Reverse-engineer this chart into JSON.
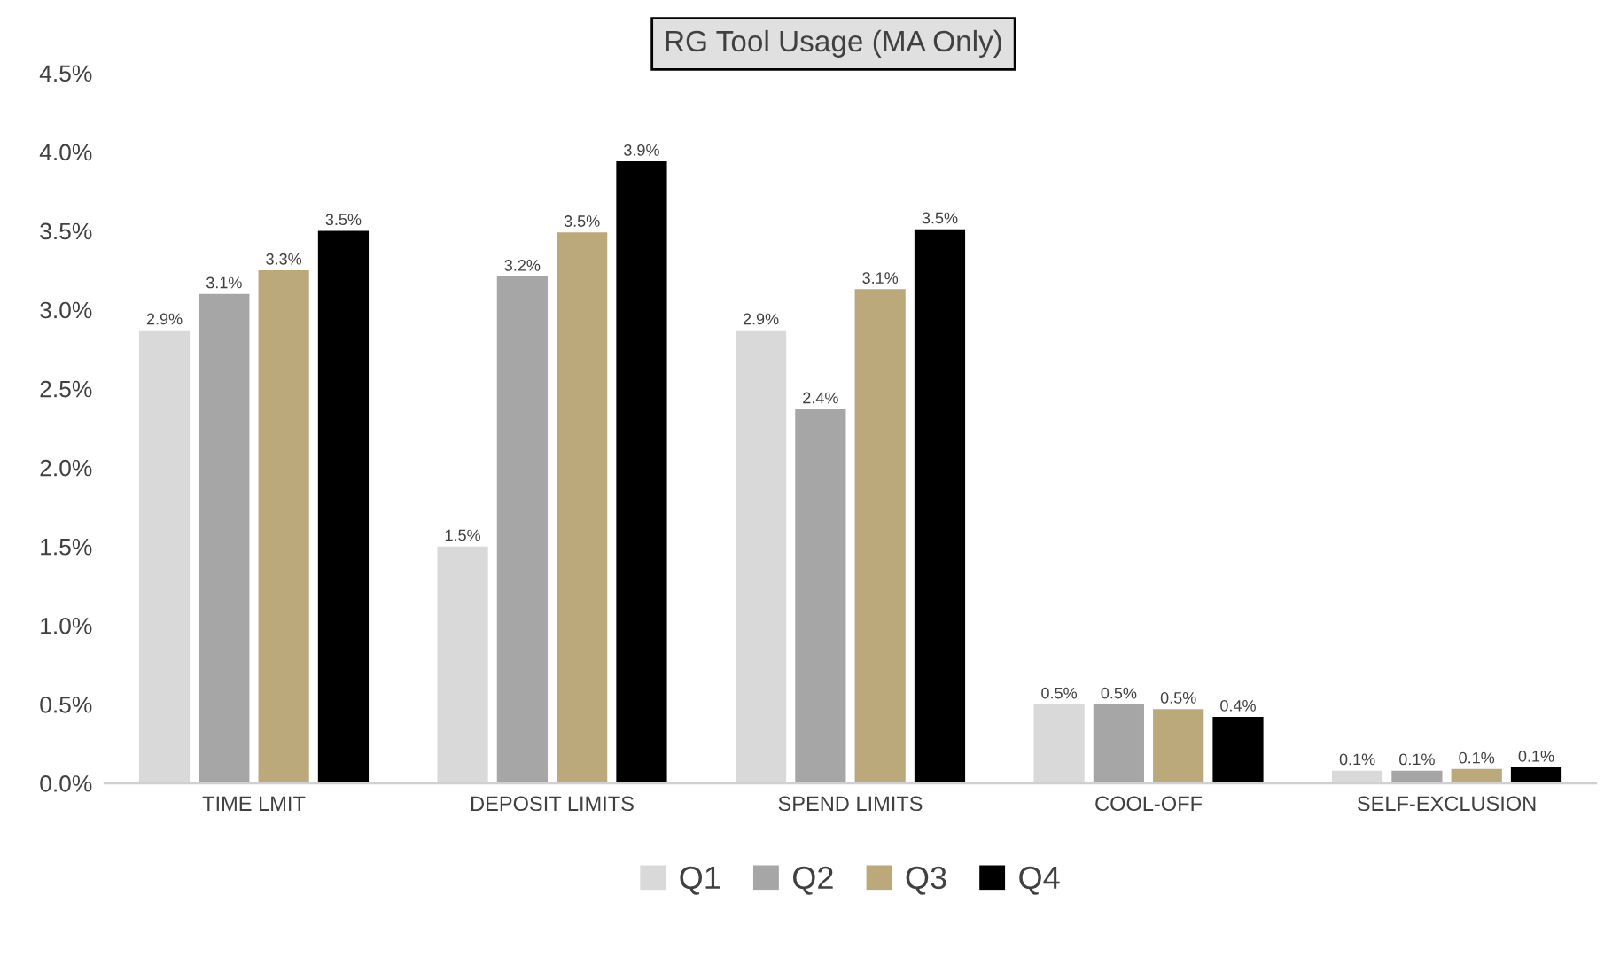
{
  "chart_data": {
    "type": "bar",
    "title": "RG Tool Usage (MA Only)",
    "categories": [
      "TIME LMIT",
      "DEPOSIT LIMITS",
      "SPEND LIMITS",
      "COOL-OFF",
      "SELF-EXCLUSION"
    ],
    "series": [
      {
        "name": "Q1",
        "color": "#d9d9d9",
        "values": [
          2.87,
          1.5,
          2.87,
          0.5,
          0.08
        ],
        "value_labels": [
          "2.9%",
          "1.5%",
          "2.9%",
          "0.5%",
          "0.1%"
        ]
      },
      {
        "name": "Q2",
        "color": "#a6a6a6",
        "values": [
          3.1,
          3.21,
          2.37,
          0.5,
          0.08
        ],
        "value_labels": [
          "3.1%",
          "3.2%",
          "2.4%",
          "0.5%",
          "0.1%"
        ]
      },
      {
        "name": "Q3",
        "color": "#bba97c",
        "values": [
          3.25,
          3.49,
          3.13,
          0.47,
          0.09
        ],
        "value_labels": [
          "3.3%",
          "3.5%",
          "3.1%",
          "0.5%",
          "0.1%"
        ]
      },
      {
        "name": "Q4",
        "color": "#000000",
        "values": [
          3.5,
          3.94,
          3.51,
          0.42,
          0.1
        ],
        "value_labels": [
          "3.5%",
          "3.9%",
          "3.5%",
          "0.4%",
          "0.1%"
        ]
      }
    ],
    "ylim": [
      0,
      4.5
    ],
    "yticks": [
      {
        "value": 0,
        "label": "0.0%"
      },
      {
        "value": 0.5,
        "label": "0.5%"
      },
      {
        "value": 1,
        "label": "1.0%"
      },
      {
        "value": 1.5,
        "label": "1.5%"
      },
      {
        "value": 2,
        "label": "2.0%"
      },
      {
        "value": 2.5,
        "label": "2.5%"
      },
      {
        "value": 3,
        "label": "3.0%"
      },
      {
        "value": 3.5,
        "label": "3.5%"
      },
      {
        "value": 4,
        "label": "4.0%"
      },
      {
        "value": 4.5,
        "label": "4.5%"
      }
    ],
    "grid": false,
    "legend": "bottom"
  }
}
